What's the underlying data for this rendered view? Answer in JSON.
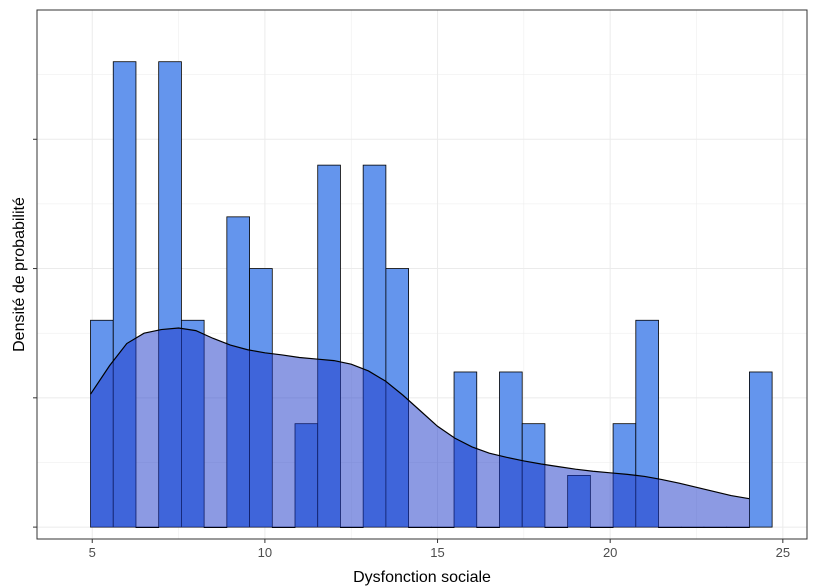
{
  "chart_data": {
    "type": "bar",
    "title": "",
    "xlabel": "Dysfonction sociale",
    "ylabel": "Densité de probabilité",
    "xlim": [
      3.4,
      25.7
    ],
    "ylim": [
      -0.0023,
      0.1
    ],
    "x_ticks": [
      5,
      10,
      15,
      20,
      25
    ],
    "x_tick_labels": [
      "5",
      "10",
      "15",
      "20",
      "25"
    ],
    "y_ticks": [
      0,
      0.025,
      0.05,
      0.075
    ],
    "y_tick_labels": [
      "",
      "",
      "",
      ""
    ],
    "grid": true,
    "bin_width": 0.658,
    "bars": [
      {
        "x0": 4.95,
        "value": 0.04
      },
      {
        "x0": 5.608,
        "value": 0.09
      },
      {
        "x0": 6.266,
        "value": 0.0
      },
      {
        "x0": 6.924,
        "value": 0.09
      },
      {
        "x0": 7.582,
        "value": 0.04
      },
      {
        "x0": 8.24,
        "value": 0.0
      },
      {
        "x0": 8.898,
        "value": 0.06
      },
      {
        "x0": 9.556,
        "value": 0.05
      },
      {
        "x0": 10.214,
        "value": 0.0
      },
      {
        "x0": 10.872,
        "value": 0.02
      },
      {
        "x0": 11.53,
        "value": 0.07
      },
      {
        "x0": 12.188,
        "value": 0.0
      },
      {
        "x0": 12.846,
        "value": 0.07
      },
      {
        "x0": 13.504,
        "value": 0.05
      },
      {
        "x0": 14.162,
        "value": 0.0
      },
      {
        "x0": 14.82,
        "value": 0.0
      },
      {
        "x0": 15.478,
        "value": 0.03
      },
      {
        "x0": 16.136,
        "value": 0.0
      },
      {
        "x0": 16.794,
        "value": 0.03
      },
      {
        "x0": 17.452,
        "value": 0.02
      },
      {
        "x0": 18.11,
        "value": 0.0
      },
      {
        "x0": 18.768,
        "value": 0.01
      },
      {
        "x0": 19.426,
        "value": 0.0
      },
      {
        "x0": 20.084,
        "value": 0.02
      },
      {
        "x0": 20.742,
        "value": 0.04
      },
      {
        "x0": 21.4,
        "value": 0.0
      },
      {
        "x0": 22.058,
        "value": 0.0
      },
      {
        "x0": 22.716,
        "value": 0.0
      },
      {
        "x0": 23.374,
        "value": 0.0
      },
      {
        "x0": 24.032,
        "value": 0.03
      }
    ],
    "density": {
      "x": [
        4.95,
        5.5,
        6.0,
        6.5,
        7.0,
        7.5,
        8.0,
        8.5,
        9.0,
        9.5,
        10.0,
        10.5,
        11.0,
        11.5,
        12.0,
        12.5,
        13.0,
        13.5,
        14.0,
        14.5,
        15.0,
        15.5,
        16.0,
        16.5,
        17.0,
        17.5,
        18.0,
        18.5,
        19.0,
        19.5,
        20.0,
        20.5,
        21.0,
        21.5,
        22.0,
        22.5,
        23.0,
        23.5,
        24.03
      ],
      "y": [
        0.0257,
        0.0312,
        0.0355,
        0.0375,
        0.0382,
        0.0385,
        0.038,
        0.0365,
        0.0352,
        0.0343,
        0.0337,
        0.0333,
        0.0328,
        0.0325,
        0.0322,
        0.0315,
        0.0302,
        0.0282,
        0.0255,
        0.0225,
        0.0195,
        0.0172,
        0.0155,
        0.0143,
        0.0135,
        0.0128,
        0.0122,
        0.0117,
        0.0112,
        0.0108,
        0.0105,
        0.0102,
        0.0098,
        0.0092,
        0.0085,
        0.0077,
        0.0069,
        0.0061,
        0.0055
      ]
    },
    "colors": {
      "bar_fill": "#6495ED",
      "bar_stroke": "#000000",
      "density_fill": "#1A36C7",
      "density_fill_opacity": 0.5,
      "density_stroke": "#000000",
      "grid": "#EBEBEB",
      "panel_border": "#333333"
    }
  }
}
